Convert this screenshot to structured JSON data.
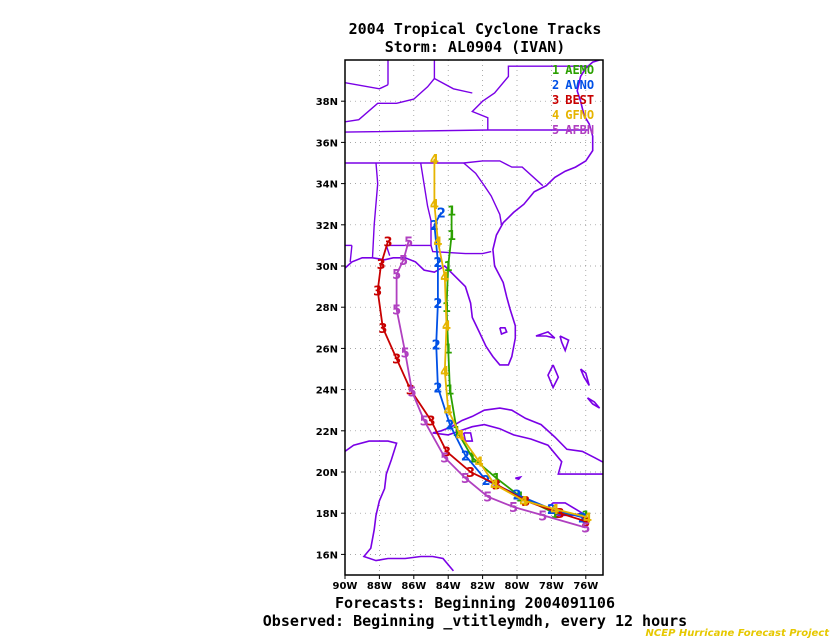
{
  "title": {
    "line1": "2004 Tropical Cyclone Tracks",
    "line2": "Storm: AL0904 (IVAN)"
  },
  "footer": {
    "forecasts": "Forecasts: Beginning 2004091106",
    "observed": "Observed: Beginning _vtitleymdh, every 12 hours",
    "credit": "NCEP Hurricane Forecast Project"
  },
  "map": {
    "lon_range": [
      -90,
      -75
    ],
    "lat_range": [
      15,
      40
    ],
    "lat_ticks": [
      {
        "lat": 16,
        "label": "16N"
      },
      {
        "lat": 18,
        "label": "18N"
      },
      {
        "lat": 20,
        "label": "20N"
      },
      {
        "lat": 22,
        "label": "22N"
      },
      {
        "lat": 24,
        "label": "24N"
      },
      {
        "lat": 26,
        "label": "26N"
      },
      {
        "lat": 28,
        "label": "28N"
      },
      {
        "lat": 30,
        "label": "30N"
      },
      {
        "lat": 32,
        "label": "32N"
      },
      {
        "lat": 34,
        "label": "34N"
      },
      {
        "lat": 36,
        "label": "36N"
      },
      {
        "lat": 38,
        "label": "38N"
      }
    ],
    "lon_ticks": [
      {
        "lon": -90,
        "label": "90W"
      },
      {
        "lon": -88,
        "label": "88W"
      },
      {
        "lon": -86,
        "label": "86W"
      },
      {
        "lon": -84,
        "label": "84W"
      },
      {
        "lon": -82,
        "label": "82W"
      },
      {
        "lon": -80,
        "label": "80W"
      },
      {
        "lon": -78,
        "label": "78W"
      },
      {
        "lon": -76,
        "label": "76W"
      }
    ],
    "grid": true,
    "coast_color": "#7a00e6",
    "legend_placement": "top-right",
    "tracks": [
      {
        "id": "1",
        "name": "AEMO",
        "color": "#2ba000",
        "markers": true,
        "points": [
          [
            -76.0,
            17.9
          ],
          [
            -77.8,
            18.0
          ],
          [
            -79.8,
            18.8
          ],
          [
            -81.2,
            19.7
          ],
          [
            -82.6,
            20.7
          ],
          [
            -83.5,
            22.0
          ],
          [
            -83.9,
            24.0
          ],
          [
            -84.0,
            26.0
          ],
          [
            -84.1,
            28.0
          ],
          [
            -84.0,
            30.0
          ],
          [
            -83.8,
            31.5
          ],
          [
            -83.8,
            32.7
          ]
        ]
      },
      {
        "id": "2",
        "name": "AVNO",
        "color": "#0050e6",
        "markers": true,
        "points": [
          [
            -76.2,
            17.8
          ],
          [
            -78.0,
            18.2
          ],
          [
            -80.0,
            18.9
          ],
          [
            -81.8,
            19.6
          ],
          [
            -83.0,
            20.8
          ],
          [
            -83.9,
            22.3
          ],
          [
            -84.6,
            24.1
          ],
          [
            -84.7,
            26.2
          ],
          [
            -84.6,
            28.2
          ],
          [
            -84.6,
            30.2
          ],
          [
            -84.8,
            32.0
          ],
          [
            -84.4,
            32.6
          ]
        ]
      },
      {
        "id": "3",
        "name": "BEST",
        "color": "#c80000",
        "markers": true,
        "points": [
          [
            -76.0,
            17.6
          ],
          [
            -77.5,
            18.0
          ],
          [
            -79.5,
            18.6
          ],
          [
            -81.2,
            19.4
          ],
          [
            -82.7,
            20.0
          ],
          [
            -84.1,
            21.0
          ],
          [
            -85.0,
            22.5
          ],
          [
            -86.2,
            24.0
          ],
          [
            -87.0,
            25.5
          ],
          [
            -87.8,
            27.0
          ],
          [
            -88.1,
            28.8
          ],
          [
            -87.9,
            30.1
          ],
          [
            -87.5,
            31.2
          ]
        ]
      },
      {
        "id": "4",
        "name": "GFNO",
        "color": "#e6b400",
        "markers": true,
        "points": [
          [
            -75.9,
            17.8
          ],
          [
            -77.8,
            18.2
          ],
          [
            -79.6,
            18.6
          ],
          [
            -81.3,
            19.4
          ],
          [
            -82.2,
            20.5
          ],
          [
            -83.3,
            21.8
          ],
          [
            -84.0,
            23.0
          ],
          [
            -84.2,
            24.9
          ],
          [
            -84.1,
            27.1
          ],
          [
            -84.2,
            29.5
          ],
          [
            -84.6,
            31.2
          ],
          [
            -84.8,
            33.0
          ],
          [
            -84.8,
            35.2
          ]
        ]
      },
      {
        "id": "5",
        "name": "AFBN",
        "color": "#b040c0",
        "markers": true,
        "points": [
          [
            -76.0,
            17.3
          ],
          [
            -78.5,
            17.9
          ],
          [
            -80.2,
            18.3
          ],
          [
            -81.7,
            18.8
          ],
          [
            -83.0,
            19.7
          ],
          [
            -84.2,
            20.7
          ],
          [
            -85.4,
            22.5
          ],
          [
            -86.1,
            23.9
          ],
          [
            -86.5,
            25.8
          ],
          [
            -87.0,
            27.9
          ],
          [
            -87.0,
            29.6
          ],
          [
            -86.6,
            30.3
          ],
          [
            -86.3,
            31.2
          ]
        ]
      }
    ]
  }
}
